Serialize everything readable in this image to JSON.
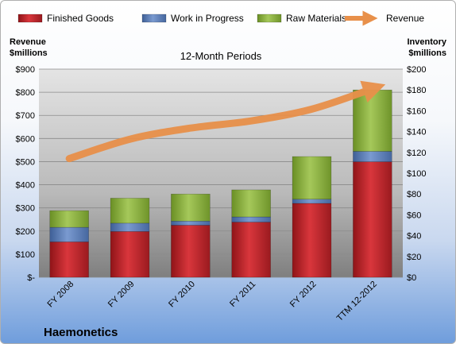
{
  "chart_data": {
    "type": "bar",
    "stacked": true,
    "title": "12-Month Periods",
    "company": "Haemonetics",
    "ylabel_left": [
      "Revenue",
      "$millions"
    ],
    "ylabel_right": [
      "Inventory",
      "$millions"
    ],
    "ylim_left": [
      0,
      900
    ],
    "ylim_right": [
      0,
      200
    ],
    "yticks_left": [
      "$-",
      "$100",
      "$200",
      "$300",
      "$400",
      "$500",
      "$600",
      "$700",
      "$800",
      "$900"
    ],
    "yticks_right": [
      "$0",
      "$20",
      "$40",
      "$60",
      "$80",
      "$100",
      "$120",
      "$140",
      "$160",
      "$180",
      "$200"
    ],
    "grid": true,
    "legend_position": "top",
    "categories": [
      "FY 2008",
      "FY 2009",
      "FY 2010",
      "FY 2011",
      "FY 2012",
      "TTM 12-2012"
    ],
    "series": [
      {
        "name": "Finished Goods",
        "axis": "right",
        "color": "#c0272d",
        "values": [
          34,
          44,
          50,
          53,
          71,
          111
        ]
      },
      {
        "name": "Work in Progress",
        "axis": "right",
        "color": "#5b7db9",
        "values": [
          14,
          8,
          4,
          5,
          4,
          10
        ]
      },
      {
        "name": "Raw Materials",
        "axis": "right",
        "color": "#8bb13c",
        "values": [
          16,
          24,
          26,
          26,
          41,
          59
        ]
      },
      {
        "name": "Revenue",
        "axis": "left",
        "type": "line",
        "color": "#e8904a",
        "values": [
          513,
          597,
          645,
          676,
          727,
          815
        ]
      }
    ]
  }
}
